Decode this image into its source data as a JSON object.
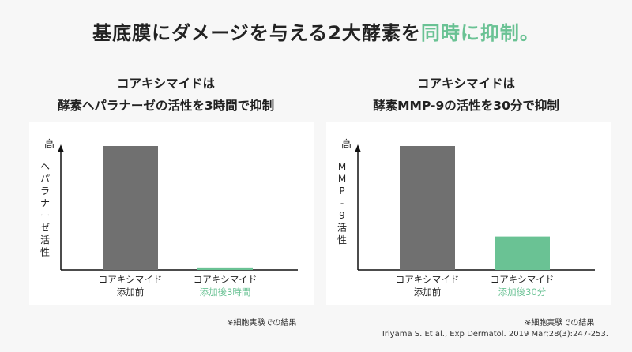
{
  "headline": {
    "main": "基底膜にダメージを与える2大酵素を",
    "accent": "同時に抑制。"
  },
  "colors": {
    "bar_before": "#707070",
    "bar_after": "#6ac294",
    "accent": "#6ac294",
    "axis": "#111111"
  },
  "chart_data": [
    {
      "type": "bar",
      "title_line1": "コアキシマイドは",
      "title_line2": "酵素ヘパラナーゼの活性を3時間で抑制",
      "ylabel": "ヘパラナーゼ活性",
      "y_top_label": "高",
      "ylim": [
        0,
        100
      ],
      "categories": [
        {
          "line1": "コアキシマイド",
          "line2": "添加前"
        },
        {
          "line1": "コアキシマイド",
          "line2": "添加後3時間"
        }
      ],
      "values": [
        100,
        2
      ],
      "footnote": "※細胞実験での結果"
    },
    {
      "type": "bar",
      "title_line1": "コアキシマイドは",
      "title_line2": "酵素MMP-9の活性を30分で抑制",
      "ylabel": "MMP-9活性",
      "y_top_label": "高",
      "ylim": [
        0,
        100
      ],
      "categories": [
        {
          "line1": "コアキシマイド",
          "line2": "添加前"
        },
        {
          "line1": "コアキシマイド",
          "line2": "添加後30分"
        }
      ],
      "values": [
        100,
        27
      ],
      "footnote": "※細胞実験での結果"
    }
  ],
  "citation": "Iriyama S. Et al., Exp Dermatol. 2019 Mar;28(3):247-253."
}
